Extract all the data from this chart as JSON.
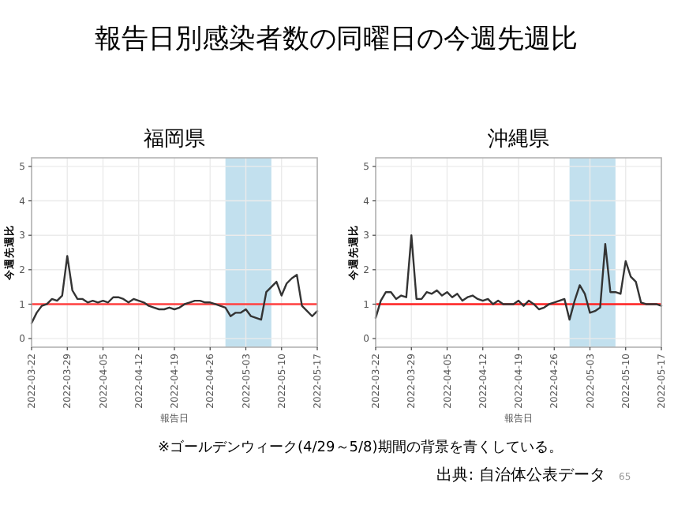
{
  "chart_data": [
    {
      "type": "other",
      "title": "報告日別感染者数の同曜日の今週先週比",
      "annotations": [
        "※ゴールデンウィーク(4/29～5/8)期間の背景を青くしている。",
        "出典: 自治体公表データ",
        "65"
      ]
    },
    {
      "type": "line",
      "title": "福岡県",
      "xlabel": "報告日",
      "ylabel": "今週先週比",
      "xlim": [
        "2022-03-22",
        "2022-05-17"
      ],
      "xticks": [
        "2022-03-22",
        "2022-03-29",
        "2022-04-05",
        "2022-04-12",
        "2022-04-19",
        "2022-04-26",
        "2022-05-03",
        "2022-05-10",
        "2022-05-17"
      ],
      "ylim": [
        -0.25,
        5.25
      ],
      "yticks": [
        0,
        1,
        2,
        3,
        4,
        5
      ],
      "grid": true,
      "x": [
        "2022-03-22",
        "2022-03-23",
        "2022-03-24",
        "2022-03-25",
        "2022-03-26",
        "2022-03-27",
        "2022-03-28",
        "2022-03-29",
        "2022-03-30",
        "2022-03-31",
        "2022-04-01",
        "2022-04-02",
        "2022-04-03",
        "2022-04-04",
        "2022-04-05",
        "2022-04-06",
        "2022-04-07",
        "2022-04-08",
        "2022-04-09",
        "2022-04-10",
        "2022-04-11",
        "2022-04-12",
        "2022-04-13",
        "2022-04-14",
        "2022-04-15",
        "2022-04-16",
        "2022-04-17",
        "2022-04-18",
        "2022-04-19",
        "2022-04-20",
        "2022-04-21",
        "2022-04-22",
        "2022-04-23",
        "2022-04-24",
        "2022-04-25",
        "2022-04-26",
        "2022-04-27",
        "2022-04-28",
        "2022-04-29",
        "2022-04-30",
        "2022-05-01",
        "2022-05-02",
        "2022-05-03",
        "2022-05-04",
        "2022-05-05",
        "2022-05-06",
        "2022-05-07",
        "2022-05-08",
        "2022-05-09",
        "2022-05-10",
        "2022-05-11",
        "2022-05-12",
        "2022-05-13",
        "2022-05-14",
        "2022-05-15",
        "2022-05-16",
        "2022-05-17"
      ],
      "series": [
        {
          "color": "#333333",
          "values": [
            0.45,
            0.75,
            0.95,
            1.0,
            1.15,
            1.1,
            1.25,
            2.4,
            1.4,
            1.15,
            1.15,
            1.05,
            1.1,
            1.05,
            1.1,
            1.05,
            1.2,
            1.2,
            1.15,
            1.05,
            1.15,
            1.1,
            1.05,
            0.95,
            0.9,
            0.85,
            0.85,
            0.9,
            0.85,
            0.9,
            1.0,
            1.05,
            1.1,
            1.1,
            1.05,
            1.05,
            1.0,
            0.95,
            0.9,
            0.65,
            0.75,
            0.75,
            0.85,
            0.65,
            0.6,
            0.55,
            1.35,
            1.5,
            1.65,
            1.25,
            1.6,
            1.75,
            1.85,
            0.95,
            0.8,
            0.65,
            0.8
          ]
        }
      ],
      "ref_lines": [
        {
          "axis": "y",
          "value": 1,
          "color": "#ff4040"
        }
      ],
      "bands": [
        {
          "axis": "x",
          "from": "2022-04-29",
          "to": "2022-05-08",
          "color": "#c2e0ee"
        }
      ]
    },
    {
      "type": "line",
      "title": "沖縄県",
      "xlabel": "報告日",
      "ylabel": "今週先週比",
      "xlim": [
        "2022-03-22",
        "2022-05-17"
      ],
      "xticks": [
        "2022-03-22",
        "2022-03-29",
        "2022-04-05",
        "2022-04-12",
        "2022-04-19",
        "2022-04-26",
        "2022-05-03",
        "2022-05-10",
        "2022-05-17"
      ],
      "ylim": [
        -0.25,
        5.25
      ],
      "yticks": [
        0,
        1,
        2,
        3,
        4,
        5
      ],
      "grid": true,
      "x": [
        "2022-03-22",
        "2022-03-23",
        "2022-03-24",
        "2022-03-25",
        "2022-03-26",
        "2022-03-27",
        "2022-03-28",
        "2022-03-29",
        "2022-03-30",
        "2022-03-31",
        "2022-04-01",
        "2022-04-02",
        "2022-04-03",
        "2022-04-04",
        "2022-04-05",
        "2022-04-06",
        "2022-04-07",
        "2022-04-08",
        "2022-04-09",
        "2022-04-10",
        "2022-04-11",
        "2022-04-12",
        "2022-04-13",
        "2022-04-14",
        "2022-04-15",
        "2022-04-16",
        "2022-04-17",
        "2022-04-18",
        "2022-04-19",
        "2022-04-20",
        "2022-04-21",
        "2022-04-22",
        "2022-04-23",
        "2022-04-24",
        "2022-04-25",
        "2022-04-26",
        "2022-04-27",
        "2022-04-28",
        "2022-04-29",
        "2022-04-30",
        "2022-05-01",
        "2022-05-02",
        "2022-05-03",
        "2022-05-04",
        "2022-05-05",
        "2022-05-06",
        "2022-05-07",
        "2022-05-08",
        "2022-05-09",
        "2022-05-10",
        "2022-05-11",
        "2022-05-12",
        "2022-05-13",
        "2022-05-14",
        "2022-05-15",
        "2022-05-16",
        "2022-05-17"
      ],
      "series": [
        {
          "color": "#333333",
          "values": [
            0.6,
            1.1,
            1.35,
            1.35,
            1.15,
            1.25,
            1.2,
            3.0,
            1.15,
            1.15,
            1.35,
            1.3,
            1.4,
            1.25,
            1.35,
            1.2,
            1.3,
            1.1,
            1.2,
            1.25,
            1.15,
            1.1,
            1.15,
            1.0,
            1.1,
            1.0,
            1.0,
            1.0,
            1.1,
            0.95,
            1.1,
            1.0,
            0.85,
            0.9,
            1.0,
            1.05,
            1.1,
            1.15,
            0.55,
            1.1,
            1.55,
            1.3,
            0.75,
            0.8,
            0.9,
            2.75,
            1.35,
            1.35,
            1.3,
            2.25,
            1.8,
            1.65,
            1.05,
            1.0,
            1.0,
            1.0,
            0.95
          ]
        }
      ],
      "ref_lines": [
        {
          "axis": "y",
          "value": 1,
          "color": "#ff2020"
        }
      ],
      "bands": [
        {
          "axis": "x",
          "from": "2022-04-29",
          "to": "2022-05-08",
          "color": "#c2e0ee"
        }
      ]
    }
  ]
}
